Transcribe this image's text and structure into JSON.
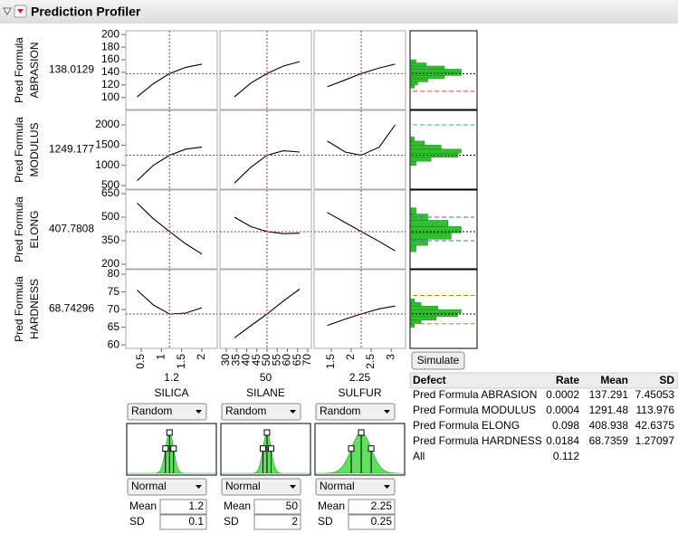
{
  "header": {
    "title": "Prediction Profiler"
  },
  "colors": {
    "crosshair": "#c8283c",
    "histogram": "#2fbf2f",
    "density": "#5fe05f"
  },
  "responses": [
    {
      "label": [
        "Pred Formula",
        "ABRASION"
      ],
      "value": 138.0129,
      "ylim": [
        81,
        206
      ],
      "yticks": [
        100,
        120,
        140,
        160,
        180,
        200
      ],
      "curves": [
        [
          101,
          122,
          138,
          148,
          153
        ],
        [
          101,
          123,
          138,
          150,
          157
        ],
        [
          117,
          128,
          138,
          147,
          153
        ]
      ],
      "hist": {
        "bins": [
          115,
          120,
          125,
          130,
          135,
          140,
          145,
          150,
          155,
          160
        ],
        "counts": [
          2,
          4,
          10,
          20,
          30,
          30,
          20,
          9,
          3
        ]
      },
      "limits": [
        {
          "value": 110,
          "color": "#d04040"
        }
      ]
    },
    {
      "label": [
        "Pred Formula",
        "MODULUS"
      ],
      "value": 1249.177,
      "ylim": [
        410,
        2360
      ],
      "yticks": [
        500,
        1000,
        1500,
        2000
      ],
      "curves": [
        [
          620,
          1000,
          1249,
          1400,
          1450
        ],
        [
          560,
          950,
          1249,
          1360,
          1330
        ],
        [
          1600,
          1330,
          1249,
          1450,
          2000
        ]
      ],
      "hist": {
        "bins": [
          1000,
          1100,
          1200,
          1300,
          1400,
          1500,
          1600,
          1700
        ],
        "counts": [
          3,
          12,
          28,
          30,
          18,
          8,
          2
        ]
      },
      "limits": [
        {
          "value": 2000,
          "color": "#3cb371"
        }
      ]
    },
    {
      "label": [
        "Pred Formula",
        "ELONG"
      ],
      "value": 407.7808,
      "ylim": [
        171,
        673
      ],
      "yticks": [
        200,
        350,
        500,
        650
      ],
      "curves": [
        [
          590,
          490,
          408,
          330,
          265
        ],
        [
          500,
          440,
          408,
          395,
          398
        ],
        [
          530,
          465,
          408,
          345,
          285
        ]
      ],
      "hist": {
        "bins": [
          280,
          320,
          360,
          400,
          440,
          480,
          520,
          560
        ],
        "counts": [
          3,
          10,
          24,
          30,
          22,
          10,
          3
        ]
      },
      "limits": [
        {
          "value": 500,
          "color": "#4169e1"
        },
        {
          "value": 350,
          "color": "#4169e1"
        }
      ]
    },
    {
      "label": [
        "Pred Formula",
        "HARDNESS"
      ],
      "value": 68.74296,
      "ylim": [
        59,
        81.3
      ],
      "yticks": [
        60,
        65,
        70,
        75,
        80
      ],
      "curves": [
        [
          75.5,
          71.3,
          68.74,
          69,
          70.5
        ],
        [
          62,
          65.4,
          68.74,
          72.4,
          75.8
        ],
        [
          65.5,
          67.3,
          68.74,
          70.2,
          71
        ]
      ],
      "hist": {
        "bins": [
          65,
          66,
          67,
          68,
          69,
          70,
          71,
          72,
          73
        ],
        "counts": [
          2,
          6,
          15,
          28,
          30,
          16,
          6,
          2
        ]
      },
      "limits": [
        {
          "value": 74,
          "color": "#b8860b"
        },
        {
          "value": 66,
          "color": "#b8860b"
        }
      ]
    }
  ],
  "factors": [
    {
      "name": "SILICA",
      "value": 1.2,
      "xlim": [
        0.12,
        2.38
      ],
      "xticks": [
        0.5,
        1,
        1.5,
        2
      ],
      "curve_x": [
        0.4,
        0.8,
        1.2,
        1.6,
        2.0
      ],
      "sim_mode": "Random",
      "distribution": "Normal",
      "mean": 1.2,
      "sd": 0.1
    },
    {
      "name": "SILANE",
      "value": 50,
      "xlim": [
        26.9,
        71.8
      ],
      "xticks": [
        30,
        35,
        40,
        45,
        50,
        55,
        60,
        65,
        70
      ],
      "curve_x": [
        34,
        42,
        50,
        58,
        66
      ],
      "sim_mode": "Random",
      "distribution": "Normal",
      "mean": 50,
      "sd": 2
    },
    {
      "name": "SULFUR",
      "value": 2.25,
      "xlim": [
        1.07,
        3.36
      ],
      "xticks": [
        1.5,
        2,
        2.5,
        3
      ],
      "curve_x": [
        1.4,
        1.85,
        2.25,
        2.7,
        3.1
      ],
      "sim_mode": "Random",
      "distribution": "Normal",
      "mean": 2.25,
      "sd": 0.25
    }
  ],
  "labels": {
    "mean": "Mean",
    "sd": "SD"
  },
  "simulate": {
    "button": "Simulate"
  },
  "defects": {
    "columns": [
      "Defect",
      "Rate",
      "Mean",
      "SD"
    ],
    "rows": [
      [
        "Pred Formula ABRASION",
        0.0002,
        137.291,
        7.45053
      ],
      [
        "Pred Formula MODULUS",
        0.0004,
        1291.48,
        113.976
      ],
      [
        "Pred Formula ELONG",
        0.098,
        408.938,
        42.6375
      ],
      [
        "Pred Formula HARDNESS",
        0.0184,
        68.7359,
        1.27097
      ],
      [
        "All",
        0.112
      ]
    ]
  }
}
